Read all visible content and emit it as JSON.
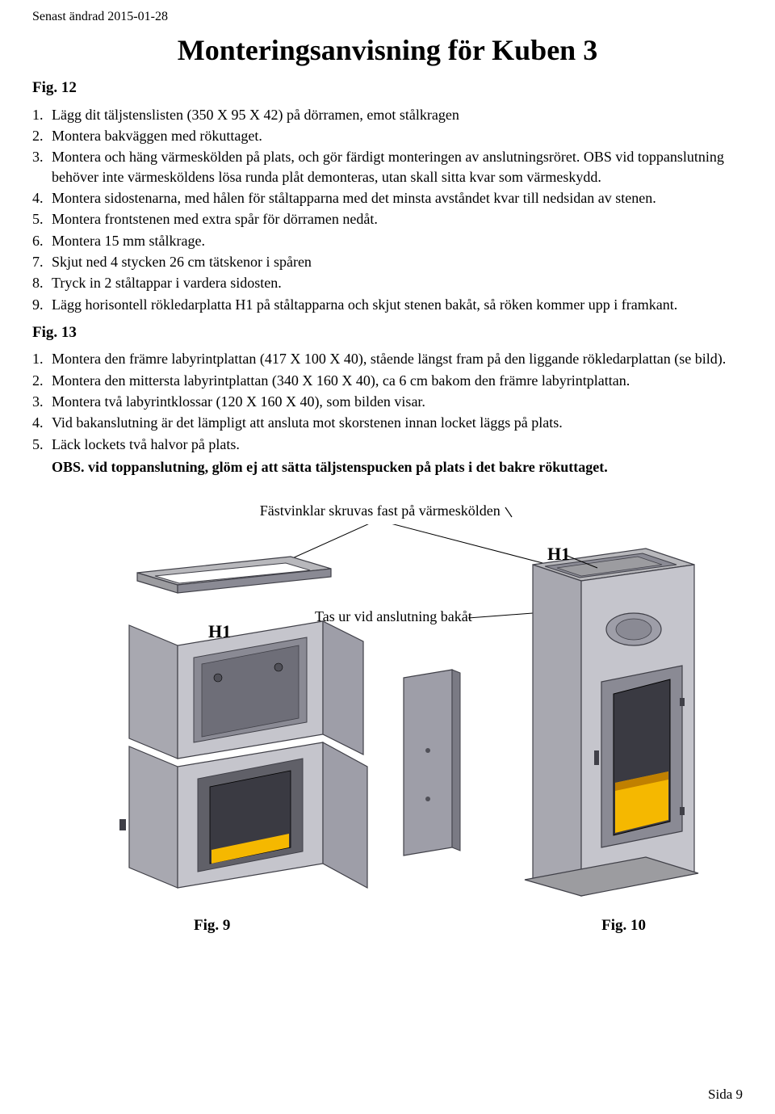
{
  "header_date": "Senast ändrad 2015-01-28",
  "title": "Monteringsanvisning för Kuben 3",
  "fig12": {
    "heading": "Fig. 12",
    "items": [
      {
        "n": "1.",
        "t": "Lägg dit täljstenslisten (350 X 95 X 42) på dörramen, emot stålkragen"
      },
      {
        "n": "2.",
        "t": "Montera bakväggen med rökuttaget."
      },
      {
        "n": "3.",
        "t": "Montera och häng värmeskölden på plats, och gör färdigt monteringen av anslutningsröret. OBS vid toppanslutning behöver inte värmesköldens lösa runda plåt demonteras, utan skall sitta kvar som värmeskydd."
      },
      {
        "n": "4.",
        "t": "Montera sidostenarna, med hålen för ståltapparna med det minsta avståndet kvar till nedsidan av stenen."
      },
      {
        "n": "5.",
        "t": "Montera frontstenen med extra spår för dörramen nedåt."
      },
      {
        "n": "6.",
        "t": "Montera 15 mm stålkrage."
      },
      {
        "n": "7.",
        "t": "Skjut ned 4 stycken 26 cm tätskenor i spåren"
      },
      {
        "n": "8.",
        "t": "Tryck in 2 ståltappar i vardera sidosten."
      },
      {
        "n": "9.",
        "t": "Lägg horisontell rökledarplatta H1 på ståltapparna och skjut stenen bakåt, så röken kommer upp i framkant."
      }
    ]
  },
  "fig13": {
    "heading": "Fig. 13",
    "items": [
      {
        "n": "1.",
        "t": "Montera den främre labyrintplattan (417 X 100 X 40), stående längst fram på den liggande rökledarplattan (se bild)."
      },
      {
        "n": "2.",
        "t": "Montera den mittersta labyrintplattan (340 X 160 X 40), ca 6 cm bakom den främre labyrintplattan."
      },
      {
        "n": "3.",
        "t": "Montera två labyrintklossar (120 X 160 X 40), som bilden visar."
      },
      {
        "n": "4.",
        "t": "Vid bakanslutning är det lämpligt att ansluta mot skorstenen innan locket läggs på plats."
      },
      {
        "n": "5.",
        "t": "Läck lockets två halvor på plats."
      }
    ],
    "obs": "OBS. vid toppanslutning, glöm ej att sätta täljstenspucken på plats i det bakre rökuttaget."
  },
  "illus": {
    "caption1": "Fästvinklar skruvas fast på värmeskölden",
    "caption2": "Tas ur vid anslutning bakåt",
    "h1_left": "H1",
    "h1_right": "H1",
    "fig_left": "Fig. 9",
    "fig_right": "Fig. 10",
    "colors": {
      "stone": "#a8a8b0",
      "stone_light": "#c5c5cc",
      "stone_dark": "#8a8a94",
      "door_frame": "#b0b0b4",
      "fire": "#f5b800",
      "fire_dark": "#c08000",
      "panel": "#9e9ea8",
      "panel_dark": "#7a7a84",
      "outline": "#404048",
      "top_frame": "#9c9ca0"
    }
  },
  "footer": "Sida 9"
}
